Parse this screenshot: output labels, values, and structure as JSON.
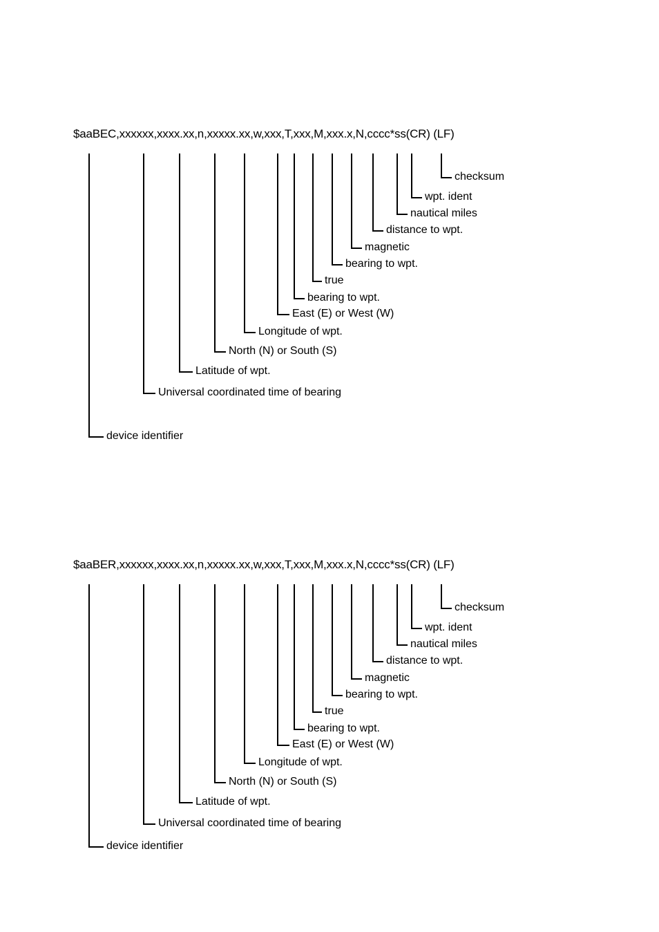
{
  "diagrams": [
    {
      "sentence": "$aaBEC,xxxxxx,xxxx.xx,n,xxxxx.xx,w,xxx,T,xxx,M,xxx.x,N,cccc*ss(CR) (LF)",
      "labels": {
        "checksum": "checksum",
        "wpt_ident": "wpt. ident",
        "nautical_miles": "nautical miles",
        "distance_to_wpt": "distance to wpt.",
        "magnetic": "magnetic",
        "bearing_to_wpt_magnetic": "bearing to wpt.",
        "true": "true",
        "bearing_to_wpt_true": "bearing to wpt.",
        "east_or_west": "East (E) or  West (W)",
        "longitude_of_wpt": "Longitude of wpt.",
        "north_or_south": "North (N) or South (S)",
        "latitude_of_wpt": "Latitude of wpt.",
        "utc_of_bearing": "Universal coordinated time of bearing",
        "device_identifier": "device identifier"
      }
    },
    {
      "sentence": "$aaBER,xxxxxx,xxxx.xx,n,xxxxx.xx,w,xxx,T,xxx,M,xxx.x,N,cccc*ss(CR) (LF)",
      "labels": {
        "checksum": "checksum",
        "wpt_ident": "wpt. ident",
        "nautical_miles": "nautical miles",
        "distance_to_wpt": "distance to wpt.",
        "magnetic": "magnetic",
        "bearing_to_wpt_magnetic": "bearing to wpt.",
        "true": "true",
        "bearing_to_wpt_true": "bearing to wpt.",
        "east_or_west": "East (E) or  West (W)",
        "longitude_of_wpt": "Longitude of wpt.",
        "north_or_south": "North (N) or South (S)",
        "latitude_of_wpt": "Latitude of wpt.",
        "utc_of_bearing": "Universal coordinated time of bearing",
        "device_identifier": "device identifier"
      }
    }
  ]
}
